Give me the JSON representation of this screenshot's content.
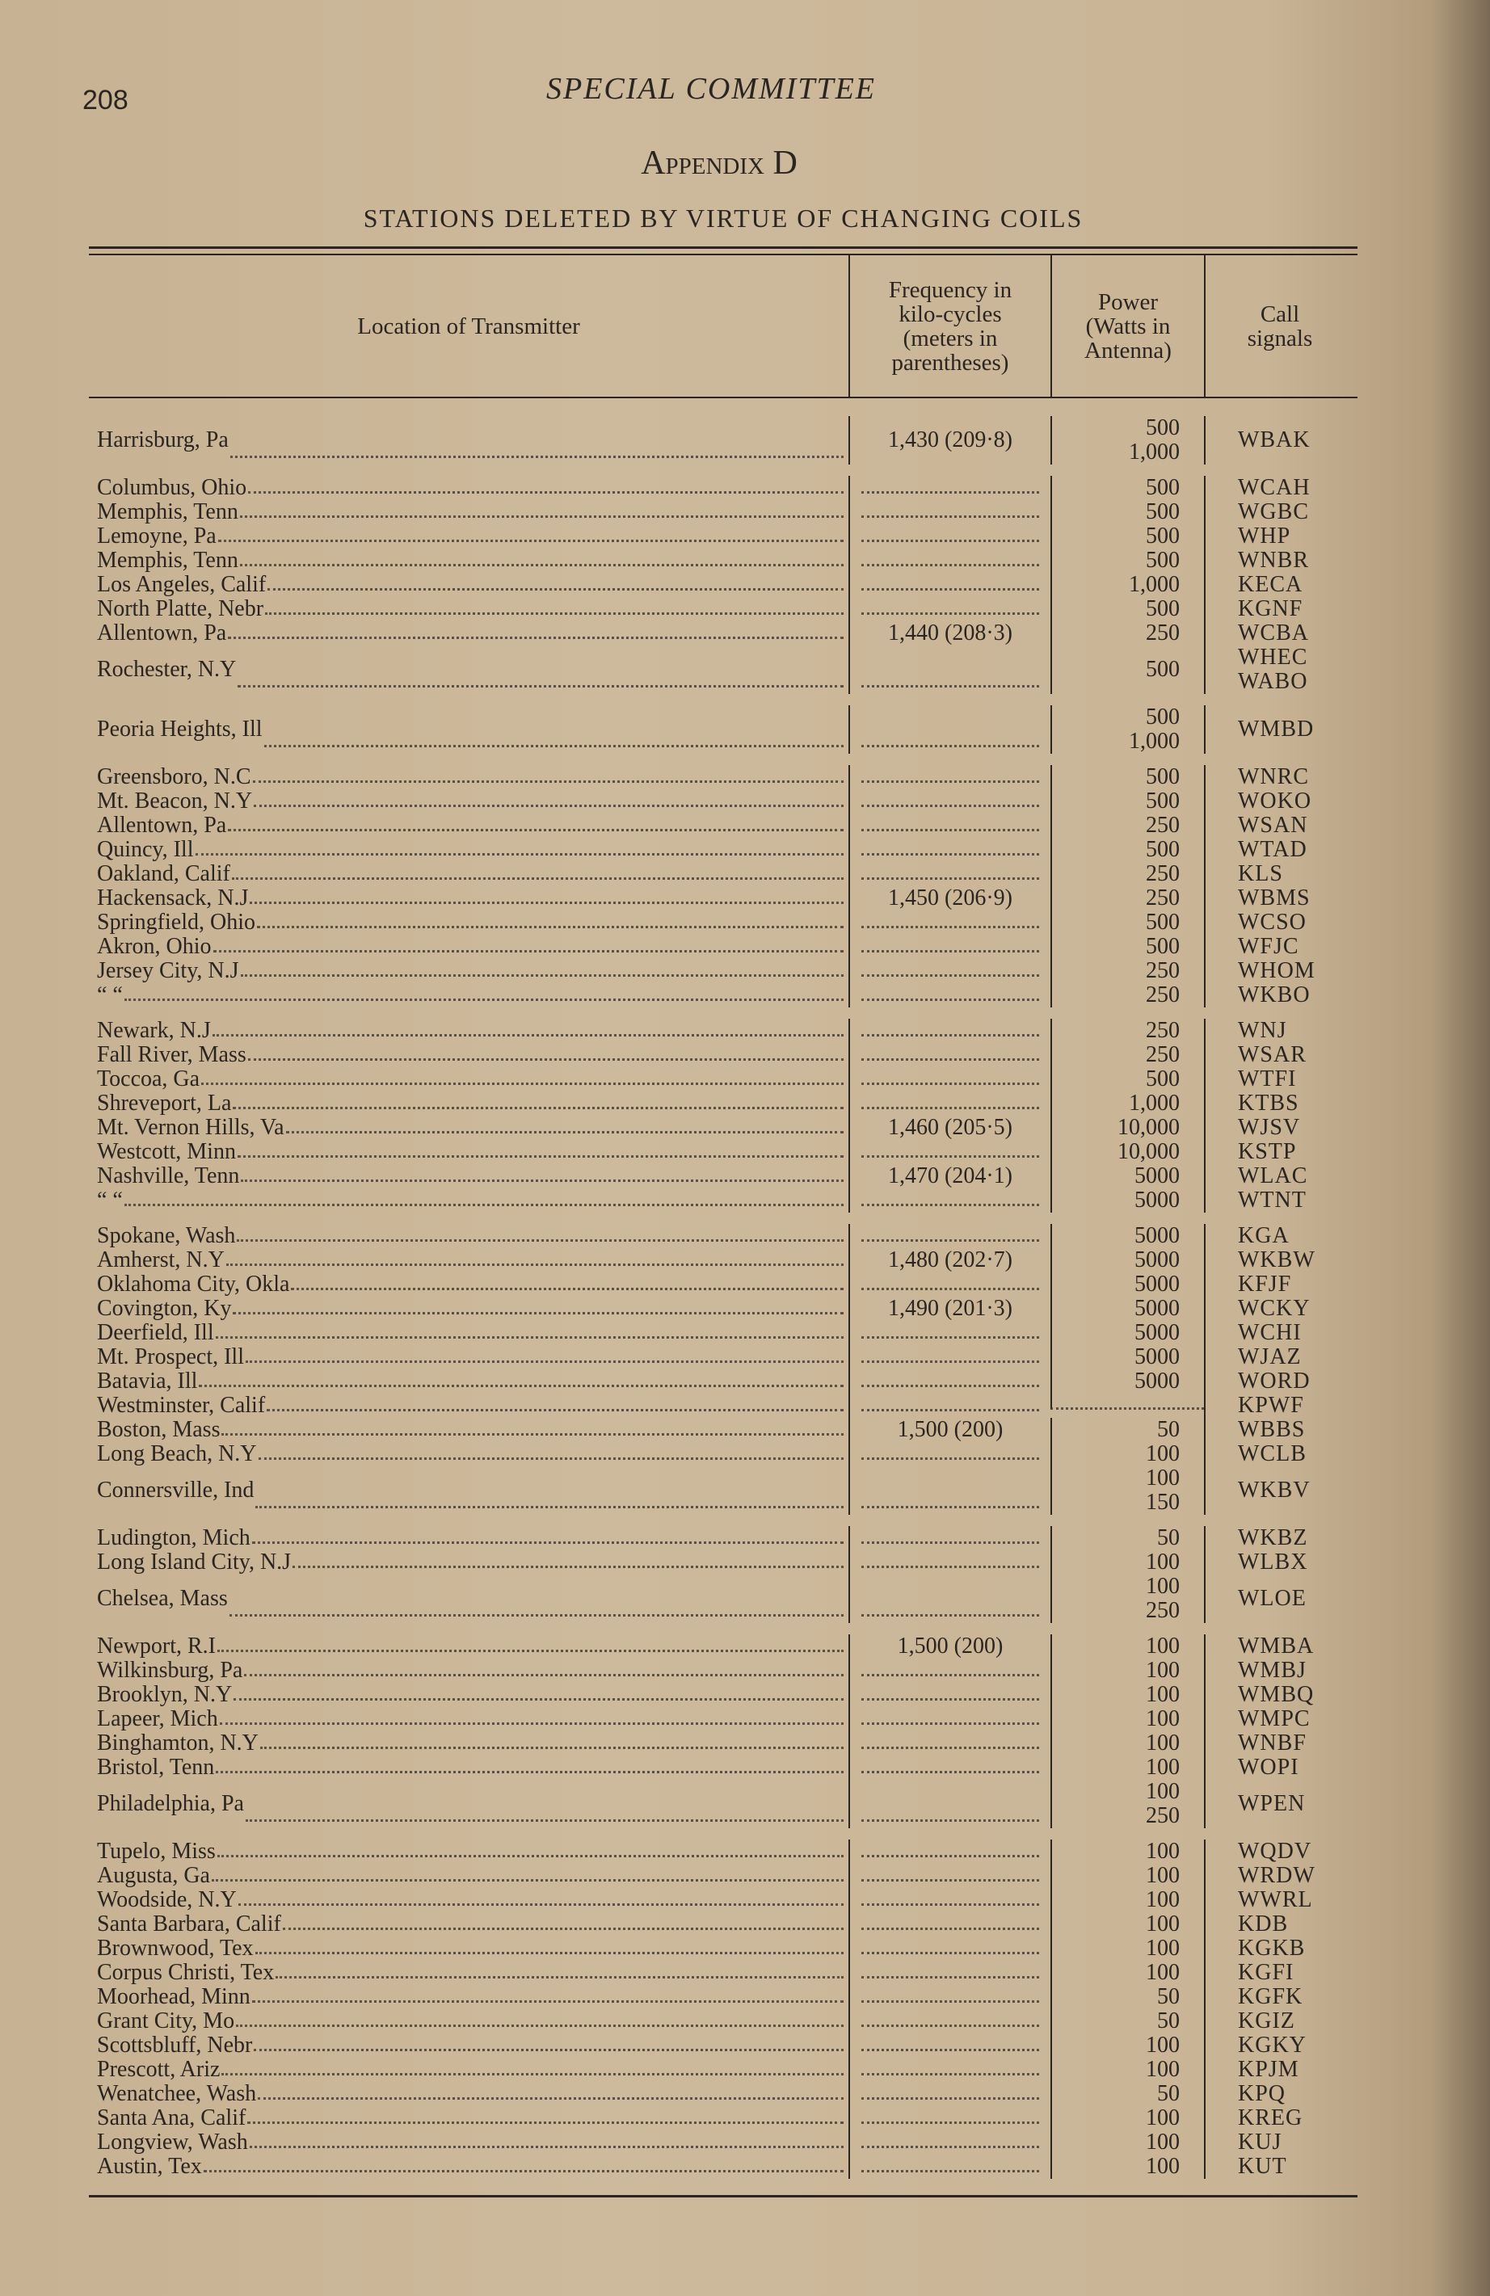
{
  "page_number": "208",
  "running_head": "SPECIAL COMMITTEE",
  "appendix": "Appendix D",
  "subtitle": "STATIONS DELETED BY VIRTUE OF CHANGING COILS",
  "headers": {
    "location": "Location of Transmitter",
    "frequency": "Frequency in kilo-cycles (meters in parentheses)",
    "power": "Power (Watts in Antenna)",
    "call": "Call signals"
  },
  "rows": [
    {
      "location": "Harrisburg, Pa",
      "frequency": "1,430 (209·8)",
      "power": [
        "500",
        "1,000"
      ],
      "call": [
        "WBAK"
      ]
    },
    {
      "location": "Columbus, Ohio",
      "frequency": "",
      "power": [
        "500"
      ],
      "call": [
        "WCAH"
      ]
    },
    {
      "location": "Memphis, Tenn",
      "frequency": "",
      "power": [
        "500"
      ],
      "call": [
        "WGBC"
      ]
    },
    {
      "location": "Lemoyne, Pa",
      "frequency": "",
      "power": [
        "500"
      ],
      "call": [
        "WHP"
      ]
    },
    {
      "location": "Memphis, Tenn",
      "frequency": "",
      "power": [
        "500"
      ],
      "call": [
        "WNBR"
      ]
    },
    {
      "location": "Los Angeles, Calif",
      "frequency": "",
      "power": [
        "1,000"
      ],
      "call": [
        "KECA"
      ]
    },
    {
      "location": "North Platte, Nebr",
      "frequency": "",
      "power": [
        "500"
      ],
      "call": [
        "KGNF"
      ]
    },
    {
      "location": "Allentown, Pa",
      "frequency": "1,440 (208·3)",
      "power": [
        "250"
      ],
      "call": [
        "WCBA"
      ]
    },
    {
      "location": "Rochester, N.Y",
      "frequency": "",
      "power": [
        "500"
      ],
      "call": [
        "WHEC",
        "WABO"
      ]
    },
    {
      "location": "Peoria Heights, Ill",
      "frequency": "",
      "power": [
        "500",
        "1,000"
      ],
      "call": [
        "WMBD"
      ]
    },
    {
      "location": "Greensboro, N.C",
      "frequency": "",
      "power": [
        "500"
      ],
      "call": [
        "WNRC"
      ]
    },
    {
      "location": "Mt. Beacon, N.Y",
      "frequency": "",
      "power": [
        "500"
      ],
      "call": [
        "WOKO"
      ]
    },
    {
      "location": "Allentown, Pa",
      "frequency": "",
      "power": [
        "250"
      ],
      "call": [
        "WSAN"
      ]
    },
    {
      "location": "Quincy, Ill",
      "frequency": "",
      "power": [
        "500"
      ],
      "call": [
        "WTAD"
      ]
    },
    {
      "location": "Oakland, Calif",
      "frequency": "",
      "power": [
        "250"
      ],
      "call": [
        "KLS"
      ]
    },
    {
      "location": "Hackensack, N.J",
      "frequency": "1,450 (206·9)",
      "power": [
        "250"
      ],
      "call": [
        "WBMS"
      ]
    },
    {
      "location": "Springfield, Ohio",
      "frequency": "",
      "power": [
        "500"
      ],
      "call": [
        "WCSO"
      ]
    },
    {
      "location": "Akron, Ohio",
      "frequency": "",
      "power": [
        "500"
      ],
      "call": [
        "WFJC"
      ]
    },
    {
      "location": "Jersey City, N.J",
      "frequency": "",
      "power": [
        "250"
      ],
      "call": [
        "WHOM"
      ]
    },
    {
      "location": "“        “",
      "frequency": "",
      "power": [
        "250"
      ],
      "call": [
        "WKBO"
      ]
    },
    {
      "location": "Newark, N.J",
      "frequency": "",
      "power": [
        "250"
      ],
      "call": [
        "WNJ"
      ]
    },
    {
      "location": "Fall River, Mass",
      "frequency": "",
      "power": [
        "250"
      ],
      "call": [
        "WSAR"
      ]
    },
    {
      "location": "Toccoa, Ga",
      "frequency": "",
      "power": [
        "500"
      ],
      "call": [
        "WTFI"
      ]
    },
    {
      "location": "Shreveport, La",
      "frequency": "",
      "power": [
        "1,000"
      ],
      "call": [
        "KTBS"
      ]
    },
    {
      "location": "Mt. Vernon Hills, Va",
      "frequency": "1,460 (205·5)",
      "power": [
        "10,000"
      ],
      "call": [
        "WJSV"
      ]
    },
    {
      "location": "Westcott, Minn",
      "frequency": "",
      "power": [
        "10,000"
      ],
      "call": [
        "KSTP"
      ]
    },
    {
      "location": "Nashville, Tenn",
      "frequency": "1,470 (204·1)",
      "power": [
        "5000"
      ],
      "call": [
        "WLAC"
      ]
    },
    {
      "location": "“        “",
      "frequency": "",
      "power": [
        "5000"
      ],
      "call": [
        "WTNT"
      ]
    },
    {
      "location": "Spokane, Wash",
      "frequency": "",
      "power": [
        "5000"
      ],
      "call": [
        "KGA"
      ]
    },
    {
      "location": "Amherst, N.Y",
      "frequency": "1,480 (202·7)",
      "power": [
        "5000"
      ],
      "call": [
        "WKBW"
      ]
    },
    {
      "location": "Oklahoma City, Okla",
      "frequency": "",
      "power": [
        "5000"
      ],
      "call": [
        "KFJF"
      ]
    },
    {
      "location": "Covington, Ky",
      "frequency": "1,490 (201·3)",
      "power": [
        "5000"
      ],
      "call": [
        "WCKY"
      ]
    },
    {
      "location": "Deerfield, Ill",
      "frequency": "",
      "power": [
        "5000"
      ],
      "call": [
        "WCHI"
      ]
    },
    {
      "location": "Mt. Prospect, Ill",
      "frequency": "",
      "power": [
        "5000"
      ],
      "call": [
        "WJAZ"
      ]
    },
    {
      "location": "Batavia, Ill",
      "frequency": "",
      "power": [
        "5000"
      ],
      "call": [
        "WORD"
      ]
    },
    {
      "location": "Westminster, Calif",
      "frequency": "",
      "power": [],
      "call": [
        "KPWF"
      ]
    },
    {
      "location": "Boston, Mass",
      "frequency": "1,500 (200)",
      "power": [
        "50"
      ],
      "call": [
        "WBBS"
      ]
    },
    {
      "location": "Long Beach, N.Y",
      "frequency": "",
      "power": [
        "100"
      ],
      "call": [
        "WCLB"
      ]
    },
    {
      "location": "Connersville, Ind",
      "frequency": "",
      "power": [
        "100",
        "150"
      ],
      "call": [
        "WKBV"
      ]
    },
    {
      "location": "Ludington, Mich",
      "frequency": "",
      "power": [
        "50"
      ],
      "call": [
        "WKBZ"
      ]
    },
    {
      "location": "Long Island City, N.J",
      "frequency": "",
      "power": [
        "100"
      ],
      "call": [
        "WLBX"
      ]
    },
    {
      "location": "Chelsea, Mass",
      "frequency": "",
      "power": [
        "100",
        "250"
      ],
      "call": [
        "WLOE"
      ]
    },
    {
      "location": "Newport, R.I",
      "frequency": "1,500 (200)",
      "power": [
        "100"
      ],
      "call": [
        "WMBA"
      ]
    },
    {
      "location": "Wilkinsburg, Pa",
      "frequency": "",
      "power": [
        "100"
      ],
      "call": [
        "WMBJ"
      ]
    },
    {
      "location": "Brooklyn, N.Y",
      "frequency": "",
      "power": [
        "100"
      ],
      "call": [
        "WMBQ"
      ]
    },
    {
      "location": "Lapeer, Mich",
      "frequency": "",
      "power": [
        "100"
      ],
      "call": [
        "WMPC"
      ]
    },
    {
      "location": "Binghamton, N.Y",
      "frequency": "",
      "power": [
        "100"
      ],
      "call": [
        "WNBF"
      ]
    },
    {
      "location": "Bristol, Tenn",
      "frequency": "",
      "power": [
        "100"
      ],
      "call": [
        "WOPI"
      ]
    },
    {
      "location": "Philadelphia, Pa",
      "frequency": "",
      "power": [
        "100",
        "250"
      ],
      "call": [
        "WPEN"
      ]
    },
    {
      "location": "Tupelo, Miss",
      "frequency": "",
      "power": [
        "100"
      ],
      "call": [
        "WQDV"
      ]
    },
    {
      "location": "Augusta, Ga",
      "frequency": "",
      "power": [
        "100"
      ],
      "call": [
        "WRDW"
      ]
    },
    {
      "location": "Woodside, N.Y",
      "frequency": "",
      "power": [
        "100"
      ],
      "call": [
        "WWRL"
      ]
    },
    {
      "location": "Santa Barbara, Calif",
      "frequency": "",
      "power": [
        "100"
      ],
      "call": [
        "KDB"
      ]
    },
    {
      "location": "Brownwood, Tex",
      "frequency": "",
      "power": [
        "100"
      ],
      "call": [
        "KGKB"
      ]
    },
    {
      "location": "Corpus Christi, Tex",
      "frequency": "",
      "power": [
        "100"
      ],
      "call": [
        "KGFI"
      ]
    },
    {
      "location": "Moorhead, Minn",
      "frequency": "",
      "power": [
        "50"
      ],
      "call": [
        "KGFK"
      ]
    },
    {
      "location": "Grant City, Mo",
      "frequency": "",
      "power": [
        "50"
      ],
      "call": [
        "KGIZ"
      ]
    },
    {
      "location": "Scottsbluff, Nebr",
      "frequency": "",
      "power": [
        "100"
      ],
      "call": [
        "KGKY"
      ]
    },
    {
      "location": "Prescott, Ariz",
      "frequency": "",
      "power": [
        "100"
      ],
      "call": [
        "KPJM"
      ]
    },
    {
      "location": "Wenatchee, Wash",
      "frequency": "",
      "power": [
        "50"
      ],
      "call": [
        "KPQ"
      ]
    },
    {
      "location": "Santa Ana, Calif",
      "frequency": "",
      "power": [
        "100"
      ],
      "call": [
        "KREG"
      ]
    },
    {
      "location": "Longview, Wash",
      "frequency": "",
      "power": [
        "100"
      ],
      "call": [
        "KUJ"
      ]
    },
    {
      "location": "Austin, Tex",
      "frequency": "",
      "power": [
        "100"
      ],
      "call": [
        "KUT"
      ]
    }
  ]
}
